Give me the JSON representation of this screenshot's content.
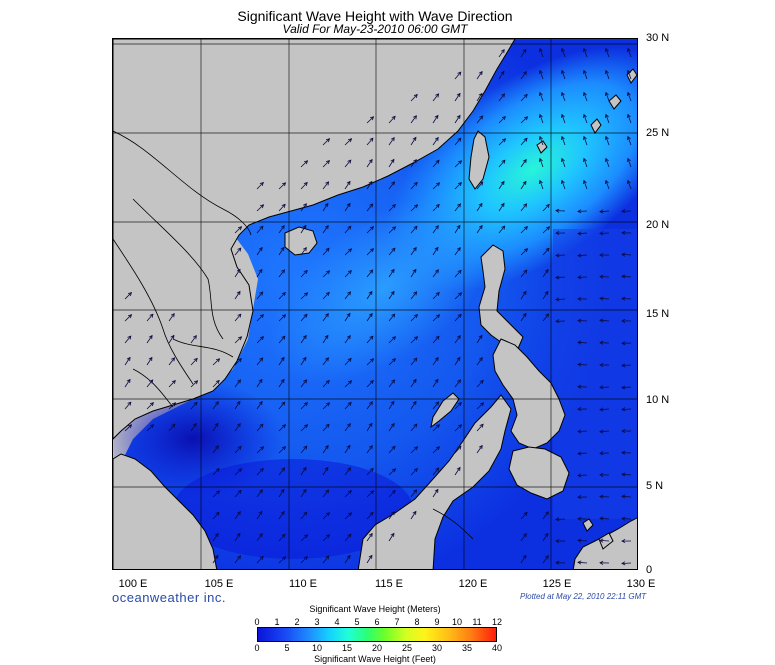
{
  "header": {
    "title": "Significant Wave Height with Wave Direction",
    "subtitle": "Valid For May-23-2010 06:00 GMT"
  },
  "map": {
    "lat_labels": [
      "30 N",
      "25 N",
      "20 N",
      "15 N",
      "10 N",
      "5 N",
      "0"
    ],
    "lon_labels": [
      "100 E",
      "105 E",
      "110 E",
      "115 E",
      "120 E",
      "125 E",
      "130 E"
    ],
    "extent": {
      "lon_min": 100,
      "lon_max": 130,
      "lat_min": 0,
      "lat_max": 30
    },
    "grid_step_degrees": 5,
    "wave_direction": "mostly toward the northeast; toward the west east of the Philippines",
    "colors": {
      "land": "#c4c4c4",
      "sea_low": "#0a14d8",
      "sea_high": "#20ffd8",
      "coast": "#000000",
      "grid": "#000000"
    }
  },
  "footer": {
    "brand": "oceanweather inc.",
    "plotted": "Plotted at May 22, 2010 22:11 GMT"
  },
  "colorbar": {
    "title_meters": "Significant Wave Height (Meters)",
    "title_feet": "Significant Wave Height (Feet)",
    "meter_ticks": [
      "0",
      "1",
      "2",
      "3",
      "4",
      "5",
      "6",
      "7",
      "8",
      "9",
      "10",
      "11",
      "12"
    ],
    "feet_ticks": [
      "0",
      "5",
      "10",
      "15",
      "20",
      "25",
      "30",
      "35",
      "40"
    ],
    "colors": [
      "#0a14d8",
      "#1f90ff",
      "#15d2ff",
      "#20ffd8",
      "#2cff72",
      "#d2ff20",
      "#fff31a",
      "#ff7a12",
      "#ff1c0c"
    ]
  }
}
